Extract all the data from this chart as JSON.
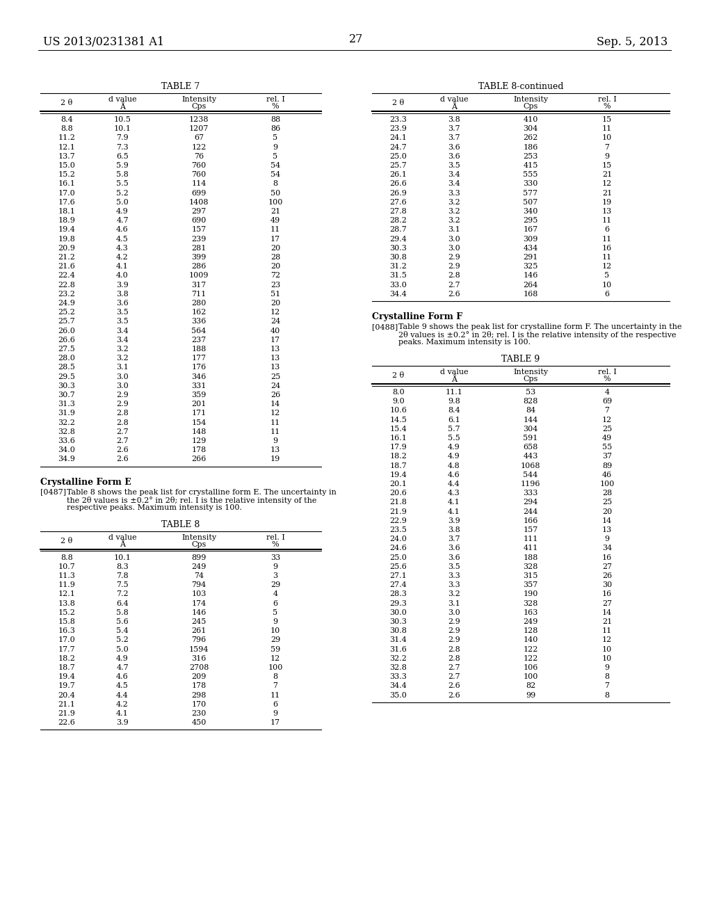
{
  "header_left": "US 2013/0231381 A1",
  "header_center": "27",
  "header_right": "Sep. 5, 2013",
  "table7_title": "TABLE 7",
  "table8cont_title": "TABLE 8-continued",
  "table8_title": "TABLE 8",
  "table9_title": "TABLE 9",
  "col_headers": [
    "2 θ",
    "d value\nÅ",
    "Intensity\nCps",
    "rel. I\n%"
  ],
  "table7_data": [
    [
      "8.4",
      "10.5",
      "1238",
      "88"
    ],
    [
      "8.8",
      "10.1",
      "1207",
      "86"
    ],
    [
      "11.2",
      "7.9",
      "67",
      "5"
    ],
    [
      "12.1",
      "7.3",
      "122",
      "9"
    ],
    [
      "13.7",
      "6.5",
      "76",
      "5"
    ],
    [
      "15.0",
      "5.9",
      "760",
      "54"
    ],
    [
      "15.2",
      "5.8",
      "760",
      "54"
    ],
    [
      "16.1",
      "5.5",
      "114",
      "8"
    ],
    [
      "17.0",
      "5.2",
      "699",
      "50"
    ],
    [
      "17.6",
      "5.0",
      "1408",
      "100"
    ],
    [
      "18.1",
      "4.9",
      "297",
      "21"
    ],
    [
      "18.9",
      "4.7",
      "690",
      "49"
    ],
    [
      "19.4",
      "4.6",
      "157",
      "11"
    ],
    [
      "19.8",
      "4.5",
      "239",
      "17"
    ],
    [
      "20.9",
      "4.3",
      "281",
      "20"
    ],
    [
      "21.2",
      "4.2",
      "399",
      "28"
    ],
    [
      "21.6",
      "4.1",
      "286",
      "20"
    ],
    [
      "22.4",
      "4.0",
      "1009",
      "72"
    ],
    [
      "22.8",
      "3.9",
      "317",
      "23"
    ],
    [
      "23.2",
      "3.8",
      "711",
      "51"
    ],
    [
      "24.9",
      "3.6",
      "280",
      "20"
    ],
    [
      "25.2",
      "3.5",
      "162",
      "12"
    ],
    [
      "25.7",
      "3.5",
      "336",
      "24"
    ],
    [
      "26.0",
      "3.4",
      "564",
      "40"
    ],
    [
      "26.6",
      "3.4",
      "237",
      "17"
    ],
    [
      "27.5",
      "3.2",
      "188",
      "13"
    ],
    [
      "28.0",
      "3.2",
      "177",
      "13"
    ],
    [
      "28.5",
      "3.1",
      "176",
      "13"
    ],
    [
      "29.5",
      "3.0",
      "346",
      "25"
    ],
    [
      "30.3",
      "3.0",
      "331",
      "24"
    ],
    [
      "30.7",
      "2.9",
      "359",
      "26"
    ],
    [
      "31.3",
      "2.9",
      "201",
      "14"
    ],
    [
      "31.9",
      "2.8",
      "171",
      "12"
    ],
    [
      "32.2",
      "2.8",
      "154",
      "11"
    ],
    [
      "32.8",
      "2.7",
      "148",
      "11"
    ],
    [
      "33.6",
      "2.7",
      "129",
      "9"
    ],
    [
      "34.0",
      "2.6",
      "178",
      "13"
    ],
    [
      "34.9",
      "2.6",
      "266",
      "19"
    ]
  ],
  "table8cont_data": [
    [
      "23.3",
      "3.8",
      "410",
      "15"
    ],
    [
      "23.9",
      "3.7",
      "304",
      "11"
    ],
    [
      "24.1",
      "3.7",
      "262",
      "10"
    ],
    [
      "24.7",
      "3.6",
      "186",
      "7"
    ],
    [
      "25.0",
      "3.6",
      "253",
      "9"
    ],
    [
      "25.7",
      "3.5",
      "415",
      "15"
    ],
    [
      "26.1",
      "3.4",
      "555",
      "21"
    ],
    [
      "26.6",
      "3.4",
      "330",
      "12"
    ],
    [
      "26.9",
      "3.3",
      "577",
      "21"
    ],
    [
      "27.6",
      "3.2",
      "507",
      "19"
    ],
    [
      "27.8",
      "3.2",
      "340",
      "13"
    ],
    [
      "28.2",
      "3.2",
      "295",
      "11"
    ],
    [
      "28.7",
      "3.1",
      "167",
      "6"
    ],
    [
      "29.4",
      "3.0",
      "309",
      "11"
    ],
    [
      "30.3",
      "3.0",
      "434",
      "16"
    ],
    [
      "30.8",
      "2.9",
      "291",
      "11"
    ],
    [
      "31.2",
      "2.9",
      "325",
      "12"
    ],
    [
      "31.5",
      "2.8",
      "146",
      "5"
    ],
    [
      "33.0",
      "2.7",
      "264",
      "10"
    ],
    [
      "34.4",
      "2.6",
      "168",
      "6"
    ]
  ],
  "table8_data": [
    [
      "8.8",
      "10.1",
      "899",
      "33"
    ],
    [
      "10.7",
      "8.3",
      "249",
      "9"
    ],
    [
      "11.3",
      "7.8",
      "74",
      "3"
    ],
    [
      "11.9",
      "7.5",
      "794",
      "29"
    ],
    [
      "12.1",
      "7.2",
      "103",
      "4"
    ],
    [
      "13.8",
      "6.4",
      "174",
      "6"
    ],
    [
      "15.2",
      "5.8",
      "146",
      "5"
    ],
    [
      "15.8",
      "5.6",
      "245",
      "9"
    ],
    [
      "16.3",
      "5.4",
      "261",
      "10"
    ],
    [
      "17.0",
      "5.2",
      "796",
      "29"
    ],
    [
      "17.7",
      "5.0",
      "1594",
      "59"
    ],
    [
      "18.2",
      "4.9",
      "316",
      "12"
    ],
    [
      "18.7",
      "4.7",
      "2708",
      "100"
    ],
    [
      "19.4",
      "4.6",
      "209",
      "8"
    ],
    [
      "19.7",
      "4.5",
      "178",
      "7"
    ],
    [
      "20.4",
      "4.4",
      "298",
      "11"
    ],
    [
      "21.1",
      "4.2",
      "170",
      "6"
    ],
    [
      "21.9",
      "4.1",
      "230",
      "9"
    ],
    [
      "22.6",
      "3.9",
      "450",
      "17"
    ]
  ],
  "table9_data": [
    [
      "8.0",
      "11.1",
      "53",
      "4"
    ],
    [
      "9.0",
      "9.8",
      "828",
      "69"
    ],
    [
      "10.6",
      "8.4",
      "84",
      "7"
    ],
    [
      "14.5",
      "6.1",
      "144",
      "12"
    ],
    [
      "15.4",
      "5.7",
      "304",
      "25"
    ],
    [
      "16.1",
      "5.5",
      "591",
      "49"
    ],
    [
      "17.9",
      "4.9",
      "658",
      "55"
    ],
    [
      "18.2",
      "4.9",
      "443",
      "37"
    ],
    [
      "18.7",
      "4.8",
      "1068",
      "89"
    ],
    [
      "19.4",
      "4.6",
      "544",
      "46"
    ],
    [
      "20.1",
      "4.4",
      "1196",
      "100"
    ],
    [
      "20.6",
      "4.3",
      "333",
      "28"
    ],
    [
      "21.8",
      "4.1",
      "294",
      "25"
    ],
    [
      "21.9",
      "4.1",
      "244",
      "20"
    ],
    [
      "22.9",
      "3.9",
      "166",
      "14"
    ],
    [
      "23.5",
      "3.8",
      "157",
      "13"
    ],
    [
      "24.0",
      "3.7",
      "111",
      "9"
    ],
    [
      "24.6",
      "3.6",
      "411",
      "34"
    ],
    [
      "25.0",
      "3.6",
      "188",
      "16"
    ],
    [
      "25.6",
      "3.5",
      "328",
      "27"
    ],
    [
      "27.1",
      "3.3",
      "315",
      "26"
    ],
    [
      "27.4",
      "3.3",
      "357",
      "30"
    ],
    [
      "28.3",
      "3.2",
      "190",
      "16"
    ],
    [
      "29.3",
      "3.1",
      "328",
      "27"
    ],
    [
      "30.0",
      "3.0",
      "163",
      "14"
    ],
    [
      "30.3",
      "2.9",
      "249",
      "21"
    ],
    [
      "30.8",
      "2.9",
      "128",
      "11"
    ],
    [
      "31.4",
      "2.9",
      "140",
      "12"
    ],
    [
      "31.6",
      "2.8",
      "122",
      "10"
    ],
    [
      "32.2",
      "2.8",
      "122",
      "10"
    ],
    [
      "32.8",
      "2.7",
      "106",
      "9"
    ],
    [
      "33.3",
      "2.7",
      "100",
      "8"
    ],
    [
      "34.4",
      "2.6",
      "82",
      "7"
    ],
    [
      "35.0",
      "2.6",
      "99",
      "8"
    ]
  ],
  "form_e_title": "Crystalline Form E",
  "form_e_para": "[0487]",
  "form_e_text": "Table 8 shows the peak list for crystalline form E. The uncertainty in the 2θ values is ±0.2° in 2θ; rel. I is the relative intensity of the respective peaks. Maximum intensity is 100.",
  "form_f_title": "Crystalline Form F",
  "form_f_para": "[0488]",
  "form_f_text": "Table 9 shows the peak list for crystalline form F. The uncertainty in the 2θ values is ±0.2° in 2θ; rel. I is the relative intensity of the respective peaks. Maximum intensity is 100."
}
